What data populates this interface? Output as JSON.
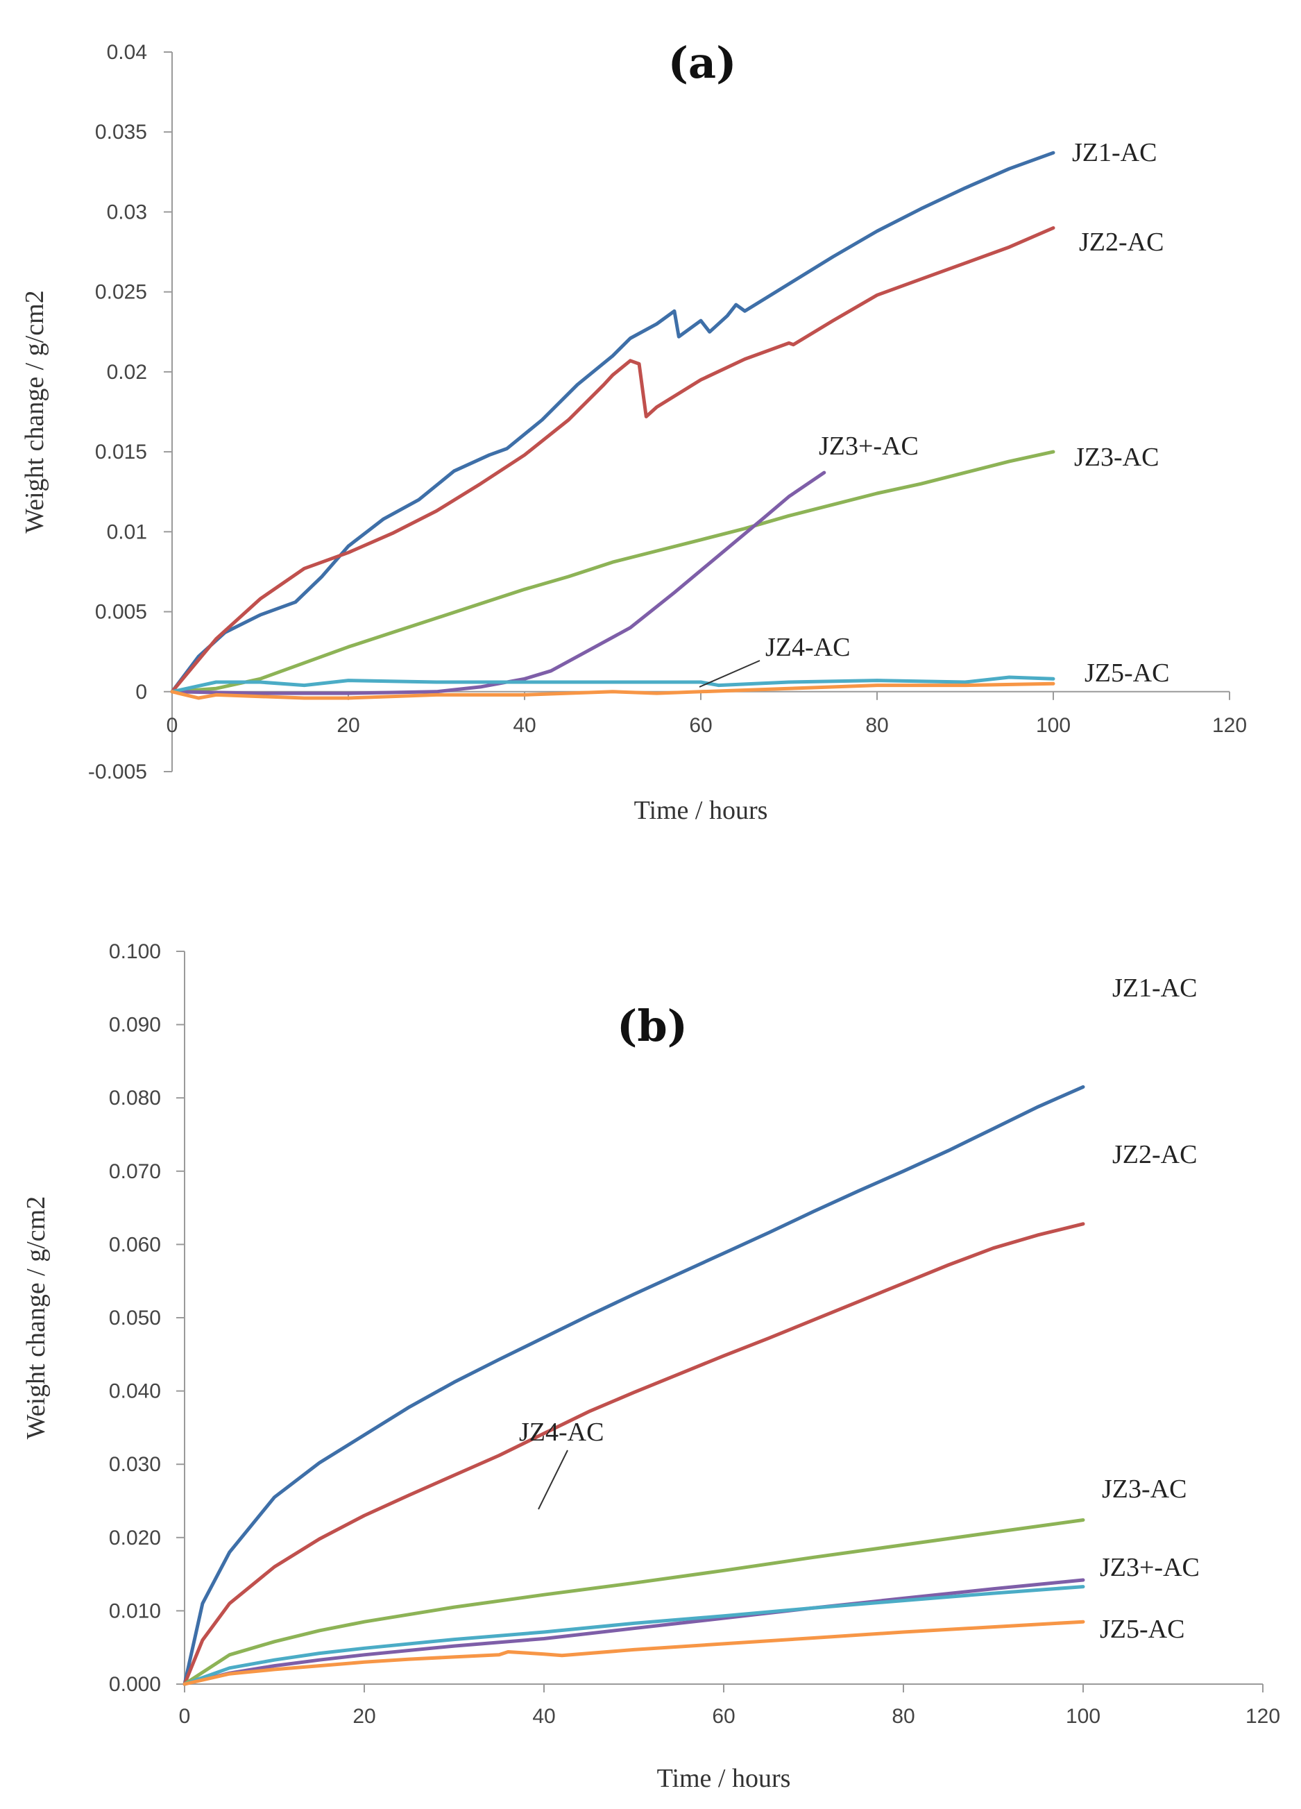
{
  "chart_data": [
    {
      "id": "a",
      "type": "line",
      "title": "(a)",
      "xlabel": "Time / hours",
      "ylabel": "Weight change / g/cm2",
      "xlim": [
        0,
        120
      ],
      "ylim": [
        -0.005,
        0.04
      ],
      "x_ticks": [
        0,
        20,
        40,
        60,
        80,
        100,
        120
      ],
      "x_tick_labels": [
        "0",
        "20",
        "40",
        "60",
        "80",
        "100",
        "120"
      ],
      "y_ticks": [
        -0.005,
        0,
        0.005,
        0.01,
        0.015,
        0.02,
        0.025,
        0.03,
        0.035,
        0.04
      ],
      "y_tick_labels": [
        "-0.005",
        "0",
        "0.005",
        "0.01",
        "0.015",
        "0.02",
        "0.025",
        "0.03",
        "0.035",
        "0.04"
      ],
      "series": [
        {
          "name": "JZ1-AC",
          "color": "#3e6fa8",
          "x": [
            0,
            3,
            6,
            10,
            14,
            17,
            20,
            24,
            28,
            32,
            36,
            38,
            42,
            46,
            50,
            52,
            55,
            57,
            57.5,
            60,
            61,
            63,
            64,
            65,
            70,
            75,
            80,
            85,
            90,
            95,
            100
          ],
          "y": [
            0,
            0.0022,
            0.0037,
            0.0048,
            0.0056,
            0.0072,
            0.0091,
            0.0108,
            0.012,
            0.0138,
            0.0148,
            0.0152,
            0.017,
            0.0192,
            0.021,
            0.0221,
            0.023,
            0.0238,
            0.0222,
            0.0232,
            0.0225,
            0.0235,
            0.0242,
            0.0238,
            0.0255,
            0.0272,
            0.0288,
            0.0302,
            0.0315,
            0.0327,
            0.0337
          ]
        },
        {
          "name": "JZ2-AC",
          "color": "#c0504d",
          "x": [
            0,
            5,
            10,
            15,
            20,
            25,
            30,
            35,
            40,
            45,
            49,
            50,
            52,
            53,
            53.8,
            55,
            60,
            65,
            70,
            70.5,
            75,
            80,
            85,
            90,
            95,
            100
          ],
          "y": [
            0,
            0.0033,
            0.0058,
            0.0077,
            0.0087,
            0.0099,
            0.0113,
            0.013,
            0.0148,
            0.017,
            0.0192,
            0.0198,
            0.0207,
            0.0205,
            0.0172,
            0.0178,
            0.0195,
            0.0208,
            0.0218,
            0.0217,
            0.0232,
            0.0248,
            0.0258,
            0.0268,
            0.0278,
            0.029
          ]
        },
        {
          "name": "JZ3-AC",
          "color": "#8db356",
          "x": [
            0,
            5,
            10,
            15,
            20,
            25,
            30,
            35,
            40,
            45,
            50,
            55,
            60,
            65,
            70,
            75,
            80,
            85,
            90,
            95,
            100
          ],
          "y": [
            0,
            0.0002,
            0.0008,
            0.0018,
            0.0028,
            0.0037,
            0.0046,
            0.0055,
            0.0064,
            0.0072,
            0.0081,
            0.0088,
            0.0095,
            0.0102,
            0.011,
            0.0117,
            0.0124,
            0.013,
            0.0137,
            0.0144,
            0.015
          ]
        },
        {
          "name": "JZ3+-AC",
          "color": "#7e5ea8",
          "x": [
            0,
            10,
            20,
            30,
            35,
            40,
            43,
            47,
            52,
            57,
            62,
            67,
            70,
            74
          ],
          "y": [
            0,
            -0.0001,
            -0.0001,
            0.0,
            0.0003,
            0.0008,
            0.0013,
            0.0025,
            0.004,
            0.0062,
            0.0085,
            0.0108,
            0.0122,
            0.0137
          ]
        },
        {
          "name": "JZ4-AC",
          "color": "#4bacc6",
          "x": [
            0,
            5,
            10,
            15,
            20,
            30,
            40,
            50,
            60,
            62,
            70,
            80,
            90,
            95,
            100
          ],
          "y": [
            0,
            0.0006,
            0.0006,
            0.0004,
            0.0007,
            0.0006,
            0.0006,
            0.0006,
            0.0006,
            0.0004,
            0.0006,
            0.0007,
            0.0006,
            0.0009,
            0.0008
          ]
        },
        {
          "name": "JZ5-AC",
          "color": "#f79646",
          "x": [
            0,
            3,
            5,
            10,
            15,
            20,
            30,
            40,
            50,
            55,
            60,
            70,
            80,
            90,
            100
          ],
          "y": [
            0,
            -0.0004,
            -0.0002,
            -0.0003,
            -0.0004,
            -0.0004,
            -0.0002,
            -0.0002,
            0.0,
            -0.0001,
            0.0,
            0.0002,
            0.0004,
            0.0004,
            0.0005
          ]
        }
      ],
      "annotations": [
        {
          "text": "JZ1-AC",
          "series": "JZ1-AC"
        },
        {
          "text": "JZ2-AC",
          "series": "JZ2-AC"
        },
        {
          "text": "JZ3+-AC",
          "series": "JZ3+-AC"
        },
        {
          "text": "JZ3-AC",
          "series": "JZ3-AC"
        },
        {
          "text": "JZ4-AC",
          "series": "JZ4-AC",
          "leader": true
        },
        {
          "text": "JZ5-AC",
          "series": "JZ5-AC"
        }
      ]
    },
    {
      "id": "b",
      "type": "line",
      "title": "(b)",
      "xlabel": "Time / hours",
      "ylabel": "Weight change / g/cm2",
      "xlim": [
        0,
        120
      ],
      "ylim": [
        0,
        0.1
      ],
      "x_ticks": [
        0,
        20,
        40,
        60,
        80,
        100,
        120
      ],
      "x_tick_labels": [
        "0",
        "20",
        "40",
        "60",
        "80",
        "100",
        "120"
      ],
      "y_ticks": [
        0,
        0.01,
        0.02,
        0.03,
        0.04,
        0.05,
        0.06,
        0.07,
        0.08,
        0.09,
        0.1
      ],
      "y_tick_labels": [
        "0.000",
        "0.010",
        "0.020",
        "0.030",
        "0.040",
        "0.050",
        "0.060",
        "0.070",
        "0.080",
        "0.090",
        "0.100"
      ],
      "series": [
        {
          "name": "JZ1-AC",
          "color": "#3e6fa8",
          "x": [
            0,
            2,
            5,
            10,
            15,
            20,
            25,
            30,
            35,
            40,
            45,
            50,
            55,
            60,
            65,
            70,
            75,
            80,
            85,
            90,
            95,
            100
          ],
          "y": [
            0,
            0.011,
            0.018,
            0.0255,
            0.0302,
            0.034,
            0.0378,
            0.0412,
            0.0443,
            0.0473,
            0.0503,
            0.0532,
            0.056,
            0.0588,
            0.0616,
            0.0645,
            0.0673,
            0.07,
            0.0728,
            0.0758,
            0.0788,
            0.0815
          ]
        },
        {
          "name": "JZ2-AC",
          "color": "#c0504d",
          "x": [
            0,
            2,
            5,
            10,
            15,
            20,
            25,
            30,
            35,
            40,
            45,
            50,
            55,
            60,
            65,
            70,
            75,
            80,
            85,
            90,
            95,
            100
          ],
          "y": [
            0,
            0.006,
            0.011,
            0.016,
            0.0198,
            0.023,
            0.0258,
            0.0285,
            0.0312,
            0.0342,
            0.0372,
            0.0398,
            0.0423,
            0.0448,
            0.0472,
            0.0497,
            0.0522,
            0.0547,
            0.0572,
            0.0595,
            0.0613,
            0.0628
          ]
        },
        {
          "name": "JZ3-AC",
          "color": "#8db356",
          "x": [
            0,
            5,
            10,
            15,
            20,
            30,
            40,
            50,
            60,
            70,
            80,
            90,
            100
          ],
          "y": [
            0,
            0.004,
            0.0058,
            0.0073,
            0.0085,
            0.0105,
            0.0122,
            0.0138,
            0.0155,
            0.0173,
            0.019,
            0.0207,
            0.0224
          ]
        },
        {
          "name": "JZ3+-AC",
          "color": "#7e5ea8",
          "x": [
            0,
            5,
            10,
            15,
            20,
            30,
            40,
            50,
            60,
            70,
            80,
            90,
            100
          ],
          "y": [
            0,
            0.0015,
            0.0025,
            0.0033,
            0.004,
            0.0052,
            0.0062,
            0.0076,
            0.009,
            0.0104,
            0.0117,
            0.013,
            0.0142
          ]
        },
        {
          "name": "JZ4-AC",
          "color": "#4bacc6",
          "x": [
            0,
            5,
            10,
            15,
            20,
            30,
            40,
            50,
            60,
            70,
            80,
            90,
            100
          ],
          "y": [
            0,
            0.0022,
            0.0033,
            0.0042,
            0.0049,
            0.0061,
            0.0071,
            0.0083,
            0.0093,
            0.0104,
            0.0114,
            0.0124,
            0.0133
          ]
        },
        {
          "name": "JZ5-AC",
          "color": "#f79646",
          "x": [
            0,
            5,
            10,
            15,
            20,
            25,
            30,
            35,
            36,
            40,
            42,
            50,
            60,
            70,
            80,
            90,
            100
          ],
          "y": [
            0,
            0.0014,
            0.002,
            0.0025,
            0.003,
            0.0034,
            0.0037,
            0.004,
            0.0044,
            0.0041,
            0.0039,
            0.0047,
            0.0055,
            0.0063,
            0.0071,
            0.0078,
            0.0085
          ]
        }
      ],
      "annotations": [
        {
          "text": "JZ1-AC",
          "series": "JZ1-AC"
        },
        {
          "text": "JZ2-AC",
          "series": "JZ2-AC"
        },
        {
          "text": "JZ3-AC",
          "series": "JZ3-AC"
        },
        {
          "text": "JZ4-AC",
          "series": "JZ4-AC",
          "leader": true
        },
        {
          "text": "JZ3+-AC",
          "series": "JZ3+-AC"
        },
        {
          "text": "JZ5-AC",
          "series": "JZ5-AC"
        }
      ]
    }
  ]
}
